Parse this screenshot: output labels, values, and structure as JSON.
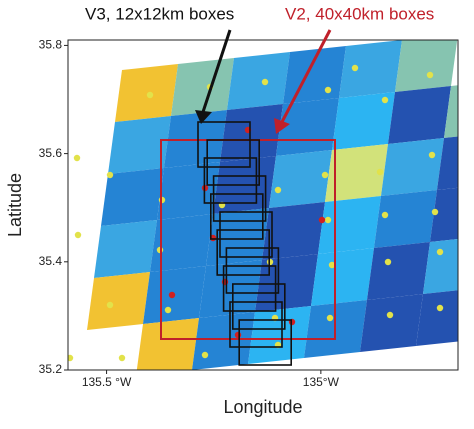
{
  "chart_data": {
    "type": "map",
    "xlabel": "Longitude",
    "ylabel": "Latitude",
    "xlim": [
      -135.59,
      -134.68
    ],
    "ylim": [
      35.2,
      35.81
    ],
    "xticks": [
      {
        "value": -135.5,
        "label": "135.5 °W"
      },
      {
        "value": -135,
        "label": "135°W"
      }
    ],
    "yticks": [
      35.8,
      35.6,
      35.4,
      35.2
    ],
    "annotations": [
      {
        "text": "V3, 12x12km boxes",
        "color": "#111111"
      },
      {
        "text": "V2, 40x40km boxes",
        "color": "#c0202a"
      }
    ]
  }
}
